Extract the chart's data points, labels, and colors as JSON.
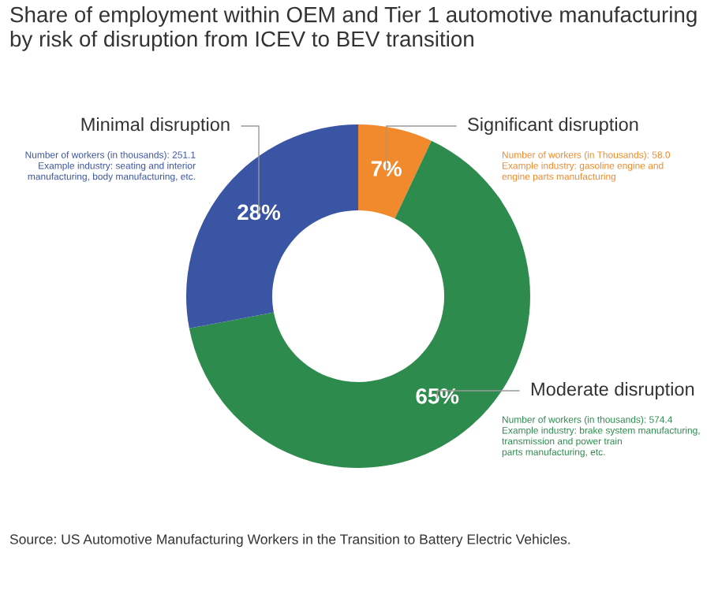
{
  "chart_data": {
    "type": "donut",
    "title": "Share of employment within OEM and Tier 1 automotive manufacturing\nby risk of disruption from ICEV to BEV transition",
    "categories": [
      "Significant disruption",
      "Moderate disruption",
      "Minimal disruption"
    ],
    "values": [
      7,
      65,
      28
    ],
    "colors": [
      "#f08a2c",
      "#2e8b4e",
      "#3b55a5"
    ],
    "value_labels": [
      "7%",
      "65%",
      "28%"
    ],
    "annotations": [
      "Number of workers (in Thousands): 58.0\nExample industry: gasoline engine and\nengine parts manufacturing",
      "Number of workers (in thousands): 574.4\nExample industry: brake system manufacturing,\ntransmission and power train\nparts manufacturing, etc.",
      "Number of workers (in thousands): 251.1\nExample industry: seating and interior\nmanufacturing, body manufacturing, etc.",
      "Source: US Automotive Manufacturing Workers in the Transition to Battery Electric Vehicles."
    ]
  }
}
